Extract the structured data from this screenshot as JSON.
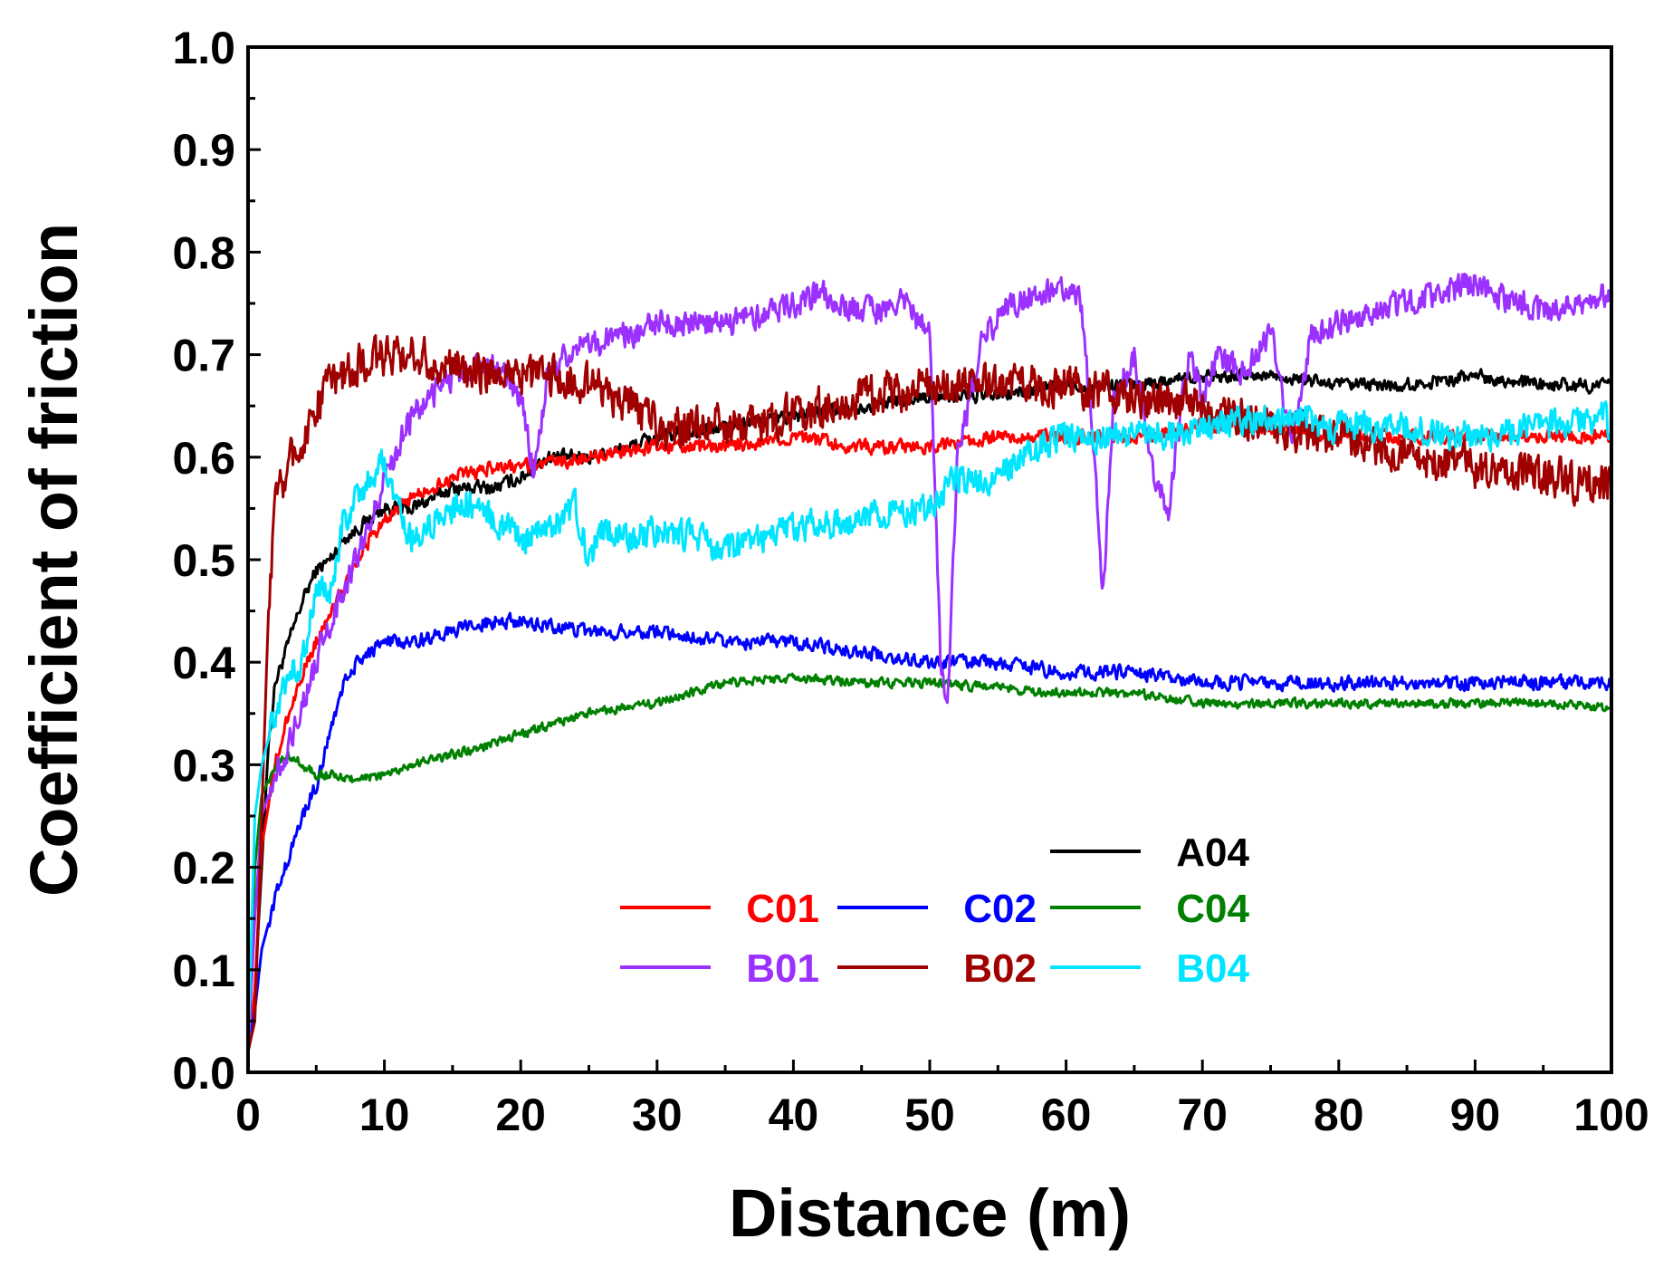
{
  "chart_data": {
    "type": "line",
    "xlabel": "Distance (m)",
    "ylabel": "Coefficient of friction",
    "xlim": [
      0,
      100
    ],
    "ylim": [
      0,
      1.0
    ],
    "x_ticks": [
      "0",
      "10",
      "20",
      "30",
      "40",
      "50",
      "60",
      "70",
      "80",
      "90",
      "100"
    ],
    "y_ticks": [
      "0.0",
      "0.1",
      "0.2",
      "0.3",
      "0.4",
      "0.5",
      "0.6",
      "0.7",
      "0.8",
      "0.9",
      "1.0"
    ],
    "grid": false,
    "legend_position": "lower-center",
    "series": [
      {
        "name": "A04",
        "color": "#000000",
        "noise": 0.006,
        "x": [
          0,
          0.5,
          1,
          1.5,
          2,
          3,
          4,
          5,
          6,
          7,
          8,
          9,
          10,
          12,
          15,
          18,
          20,
          22,
          25,
          28,
          30,
          35,
          40,
          45,
          50,
          55,
          60,
          65,
          70,
          75,
          80,
          85,
          90,
          95,
          100
        ],
        "y": [
          0.02,
          0.08,
          0.2,
          0.32,
          0.38,
          0.42,
          0.46,
          0.49,
          0.5,
          0.52,
          0.53,
          0.54,
          0.55,
          0.55,
          0.57,
          0.57,
          0.58,
          0.6,
          0.6,
          0.61,
          0.62,
          0.63,
          0.64,
          0.65,
          0.66,
          0.66,
          0.67,
          0.67,
          0.68,
          0.68,
          0.67,
          0.67,
          0.68,
          0.67,
          0.67
        ]
      },
      {
        "name": "C01",
        "color": "#ff0000",
        "noise": 0.006,
        "x": [
          0,
          0.5,
          1,
          2,
          3,
          4,
          5,
          6,
          7,
          8,
          9,
          10,
          12,
          15,
          18,
          20,
          25,
          30,
          35,
          40,
          45,
          50,
          55,
          60,
          65,
          70,
          75,
          80,
          85,
          90,
          95,
          100
        ],
        "y": [
          0.02,
          0.08,
          0.22,
          0.3,
          0.35,
          0.39,
          0.42,
          0.45,
          0.47,
          0.5,
          0.52,
          0.54,
          0.56,
          0.58,
          0.59,
          0.59,
          0.6,
          0.61,
          0.61,
          0.62,
          0.61,
          0.61,
          0.62,
          0.62,
          0.62,
          0.63,
          0.63,
          0.62,
          0.62,
          0.62,
          0.62,
          0.62
        ]
      },
      {
        "name": "C02",
        "color": "#0000ff",
        "noise": 0.006,
        "x": [
          0,
          0.5,
          1,
          2,
          3,
          4,
          5,
          6,
          7,
          8,
          10,
          12,
          15,
          18,
          20,
          25,
          30,
          35,
          40,
          45,
          50,
          55,
          60,
          65,
          70,
          75,
          80,
          85,
          90,
          95,
          100
        ],
        "y": [
          0.02,
          0.06,
          0.12,
          0.17,
          0.21,
          0.25,
          0.28,
          0.33,
          0.38,
          0.4,
          0.42,
          0.42,
          0.43,
          0.44,
          0.44,
          0.43,
          0.43,
          0.42,
          0.42,
          0.41,
          0.4,
          0.4,
          0.39,
          0.39,
          0.38,
          0.38,
          0.38,
          0.38,
          0.38,
          0.38,
          0.38
        ]
      },
      {
        "name": "C04",
        "color": "#008000",
        "noise": 0.004,
        "x": [
          0,
          0.5,
          1,
          2,
          3,
          4,
          5,
          6,
          8,
          10,
          12,
          15,
          18,
          20,
          25,
          30,
          35,
          40,
          45,
          50,
          55,
          60,
          65,
          70,
          75,
          80,
          85,
          90,
          95,
          100
        ],
        "y": [
          0.02,
          0.2,
          0.27,
          0.3,
          0.31,
          0.3,
          0.29,
          0.29,
          0.285,
          0.29,
          0.3,
          0.31,
          0.32,
          0.33,
          0.35,
          0.36,
          0.38,
          0.385,
          0.38,
          0.38,
          0.375,
          0.37,
          0.37,
          0.36,
          0.36,
          0.36,
          0.36,
          0.36,
          0.36,
          0.355
        ]
      },
      {
        "name": "B01",
        "color": "#9b30ff",
        "noise": 0.012,
        "x": [
          0,
          0.5,
          1,
          2,
          3,
          4,
          5,
          6,
          8,
          10,
          12,
          15,
          18,
          20,
          21,
          22,
          23,
          25,
          28,
          30,
          35,
          40,
          42,
          45,
          48,
          50,
          50.8,
          51.3,
          52,
          54,
          56,
          58,
          60,
          61,
          62,
          62.7,
          63.5,
          65,
          66.5,
          67.5,
          69,
          70,
          71,
          73,
          75,
          76.5,
          78,
          80,
          85,
          90,
          95,
          100
        ],
        "y": [
          0.02,
          0.15,
          0.25,
          0.29,
          0.32,
          0.36,
          0.4,
          0.44,
          0.5,
          0.58,
          0.64,
          0.68,
          0.69,
          0.66,
          0.58,
          0.68,
          0.7,
          0.71,
          0.72,
          0.73,
          0.73,
          0.75,
          0.76,
          0.74,
          0.75,
          0.72,
          0.4,
          0.35,
          0.6,
          0.72,
          0.75,
          0.76,
          0.77,
          0.76,
          0.62,
          0.46,
          0.66,
          0.7,
          0.58,
          0.55,
          0.7,
          0.66,
          0.7,
          0.68,
          0.72,
          0.62,
          0.72,
          0.73,
          0.75,
          0.77,
          0.74,
          0.76
        ]
      },
      {
        "name": "B02",
        "color": "#a00000",
        "noise": 0.018,
        "x": [
          0,
          0.5,
          1,
          1.5,
          2,
          3,
          4,
          5,
          6,
          8,
          10,
          12,
          15,
          18,
          20,
          22,
          25,
          28,
          30,
          35,
          40,
          45,
          50,
          55,
          60,
          65,
          70,
          75,
          80,
          85,
          90,
          95,
          100
        ],
        "y": [
          0.02,
          0.05,
          0.25,
          0.45,
          0.55,
          0.6,
          0.62,
          0.65,
          0.67,
          0.69,
          0.7,
          0.7,
          0.69,
          0.68,
          0.68,
          0.68,
          0.67,
          0.65,
          0.63,
          0.63,
          0.64,
          0.66,
          0.67,
          0.67,
          0.67,
          0.66,
          0.65,
          0.63,
          0.62,
          0.6,
          0.59,
          0.58,
          0.575
        ]
      },
      {
        "name": "B04",
        "color": "#00e5ff",
        "noise": 0.013,
        "x": [
          0,
          0.5,
          1,
          2,
          3,
          4,
          5,
          6,
          7,
          8,
          9,
          10,
          11,
          12,
          14,
          16,
          18,
          20,
          22,
          24,
          25,
          26,
          28,
          30,
          33,
          35,
          38,
          40,
          45,
          48,
          50,
          52,
          55,
          58,
          60,
          65,
          70,
          75,
          80,
          85,
          90,
          95,
          99.5,
          100
        ],
        "y": [
          0.02,
          0.25,
          0.3,
          0.35,
          0.39,
          0.4,
          0.48,
          0.46,
          0.54,
          0.56,
          0.58,
          0.6,
          0.55,
          0.52,
          0.54,
          0.56,
          0.54,
          0.52,
          0.53,
          0.55,
          0.5,
          0.53,
          0.52,
          0.53,
          0.52,
          0.51,
          0.52,
          0.53,
          0.54,
          0.55,
          0.55,
          0.58,
          0.58,
          0.61,
          0.62,
          0.62,
          0.63,
          0.64,
          0.63,
          0.63,
          0.62,
          0.63,
          0.64,
          0.62
        ]
      }
    ]
  }
}
